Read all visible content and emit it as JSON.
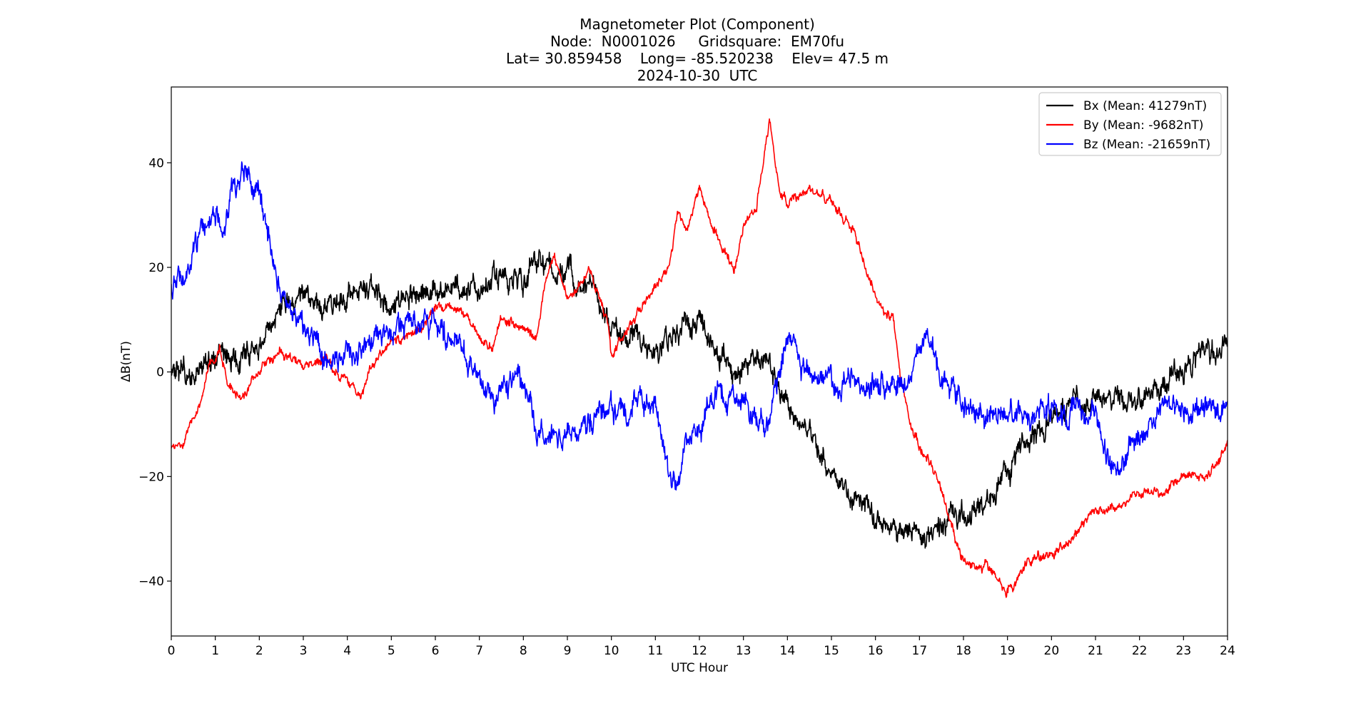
{
  "chart_data": {
    "type": "line",
    "title_lines": [
      "Magnetometer Plot (Component)",
      "Node:  N0001026     Gridsquare:  EM70fu",
      "Lat= 30.859458    Long= -85.520238    Elev= 47.5 m",
      "2024-10-30  UTC"
    ],
    "xlabel": "UTC Hour",
    "ylabel": "ΔB(nT)",
    "xlim": [
      0,
      24
    ],
    "ylim": [
      -50.5,
      54.5
    ],
    "xticks": [
      0,
      1,
      2,
      3,
      4,
      5,
      6,
      7,
      8,
      9,
      10,
      11,
      12,
      13,
      14,
      15,
      16,
      17,
      18,
      19,
      20,
      21,
      22,
      23,
      24
    ],
    "yticks": [
      -40,
      -20,
      0,
      20,
      40
    ],
    "ytick_labels": [
      "−40",
      "−20",
      "0",
      "20",
      "40"
    ],
    "grid": false,
    "legend_position": "top-right",
    "series": [
      {
        "name": "Bx (Mean: 41279nT)",
        "color": "#000000",
        "noise": 5,
        "x": [
          0,
          0.5,
          1,
          1.5,
          2,
          2.5,
          3,
          3.5,
          4,
          4.5,
          5,
          5.5,
          6,
          6.5,
          7,
          7.5,
          8,
          8.3,
          8.5,
          9,
          9.5,
          10,
          10.5,
          11,
          11.5,
          12,
          12.5,
          13,
          13.5,
          14,
          14.5,
          15,
          15.5,
          16,
          16.5,
          17,
          17.5,
          18,
          18.5,
          19,
          19.5,
          20,
          20.5,
          21,
          21.5,
          22,
          22.5,
          23,
          23.5,
          24
        ],
        "y": [
          -1,
          0,
          2,
          3,
          5,
          12,
          14,
          13,
          15,
          16,
          13,
          14,
          16,
          15,
          17,
          18,
          17,
          22,
          20,
          18,
          16,
          8,
          6,
          5,
          9,
          10,
          2,
          0,
          2,
          -6,
          -12,
          -18,
          -24,
          -28,
          -30,
          -31,
          -30,
          -27,
          -25,
          -19,
          -13,
          -9,
          -7,
          -6,
          -6,
          -5,
          -2,
          0,
          3,
          5
        ]
      },
      {
        "name": "By (Mean: -9682nT)",
        "color": "#ff0000",
        "noise": 2,
        "x": [
          0,
          0.3,
          0.6,
          0.9,
          1.1,
          1.3,
          1.6,
          2,
          2.5,
          3,
          3.5,
          4,
          4.3,
          4.6,
          5,
          5.5,
          6,
          6.5,
          7,
          7.3,
          7.5,
          8,
          8.3,
          8.5,
          8.7,
          9,
          9.5,
          9.9,
          10,
          10.5,
          11,
          11.3,
          11.5,
          11.7,
          12,
          12.3,
          12.6,
          12.8,
          13,
          13.3,
          13.6,
          13.8,
          14,
          14.5,
          15,
          15.5,
          16,
          16.4,
          16.6,
          16.8,
          17,
          17.3,
          17.6,
          18,
          18.5,
          19,
          19.5,
          20,
          20.5,
          21,
          21.5,
          22,
          22.5,
          23,
          23.5,
          24
        ],
        "y": [
          -15,
          -13,
          -7,
          2,
          5,
          -3,
          -5,
          0,
          4,
          1,
          2,
          -2,
          -5,
          2,
          6,
          7,
          12,
          12,
          7,
          5,
          10,
          8,
          6,
          18,
          22,
          14,
          20,
          10,
          3,
          10,
          16,
          20,
          30,
          26,
          35,
          28,
          22,
          20,
          28,
          32,
          48,
          35,
          32,
          35,
          33,
          27,
          14,
          10,
          -2,
          -10,
          -14,
          -18,
          -25,
          -37,
          -37,
          -42,
          -36,
          -35,
          -32,
          -26,
          -26,
          -23,
          -23,
          -20,
          -20,
          -14
        ]
      },
      {
        "name": "Bz (Mean: -21659nT)",
        "color": "#0000ff",
        "noise": 5,
        "x": [
          0,
          0.3,
          0.6,
          0.8,
          1,
          1.2,
          1.4,
          1.6,
          1.8,
          2,
          2.2,
          2.5,
          2.8,
          3,
          3.3,
          3.6,
          4,
          4.5,
          5,
          5.5,
          6,
          6.5,
          7,
          7.3,
          7.6,
          8,
          8.3,
          8.6,
          9,
          9.5,
          10,
          10.5,
          11,
          11.3,
          11.5,
          11.7,
          12,
          12.3,
          12.6,
          13,
          13.5,
          14,
          14.2,
          14.5,
          15,
          15.5,
          16,
          16.5,
          16.8,
          17,
          17.2,
          17.5,
          18,
          18.5,
          19,
          19.5,
          20,
          20.5,
          21,
          21.2,
          21.5,
          22,
          22.3,
          22.5,
          23,
          23.5,
          24
        ],
        "y": [
          15,
          20,
          25,
          29,
          31,
          28,
          35,
          39,
          37,
          33,
          25,
          15,
          10,
          8,
          5,
          0,
          3,
          6,
          8,
          10,
          8,
          5,
          0,
          -5,
          -3,
          -2,
          -12,
          -12,
          -13,
          -10,
          -8,
          -6,
          -6,
          -18,
          -22,
          -15,
          -10,
          -5,
          -5,
          -6,
          -10,
          8,
          4,
          -1,
          -2,
          -2,
          -3,
          -2,
          0,
          5,
          6,
          0,
          -6,
          -9,
          -8,
          -8,
          -8,
          -7,
          -9,
          -14,
          -19,
          -12,
          -9,
          -6,
          -6,
          -7,
          -7
        ]
      }
    ]
  }
}
